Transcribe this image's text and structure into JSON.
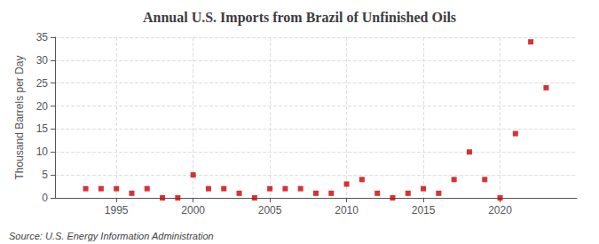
{
  "chart_data": {
    "type": "scatter",
    "title": "Annual U.S. Imports from Brazil of Unfinished Oils",
    "ylabel": "Thousand Barrels per Day",
    "annotations": [
      "Source: U.S. Energy Information Administration"
    ],
    "x": [
      1993,
      1994,
      1995,
      1996,
      1997,
      1998,
      1999,
      2000,
      2001,
      2002,
      2003,
      2004,
      2005,
      2006,
      2007,
      2008,
      2009,
      2010,
      2011,
      2012,
      2013,
      2014,
      2015,
      2016,
      2017,
      2018,
      2019,
      2020,
      2021,
      2022,
      2023
    ],
    "values": [
      2,
      2,
      2,
      1,
      2,
      0,
      0,
      5,
      2,
      2,
      1,
      0,
      2,
      2,
      2,
      1,
      1,
      3,
      4,
      1,
      0,
      1,
      2,
      1,
      4,
      10,
      4,
      0,
      14,
      34,
      24
    ],
    "xlim": [
      1991,
      2025
    ],
    "xticks": [
      1995,
      2000,
      2005,
      2010,
      2015,
      2020
    ],
    "ylim": [
      0,
      35
    ],
    "yticks": [
      0,
      5,
      10,
      15,
      20,
      25,
      30,
      35
    ],
    "color": "#cc0000",
    "marker": "square",
    "grid": true
  }
}
